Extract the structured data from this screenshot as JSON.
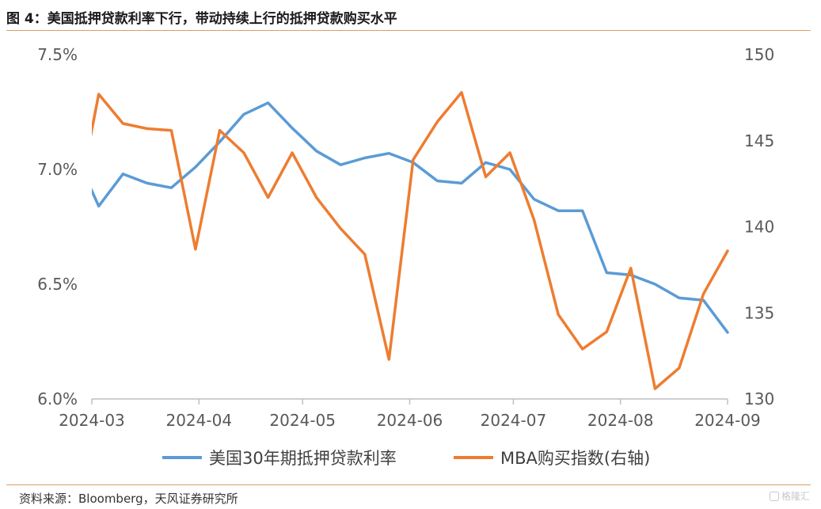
{
  "title": "图 4：美国抵押贷款利率下行，带动持续上行的抵押贷款购买水平",
  "source": "资料来源：Bloomberg，天风证券研究所",
  "watermark": "格隆汇",
  "colors": {
    "rate": "#5b9bd5",
    "mba": "#ed7d31",
    "rule": "#d9a066",
    "text": "#595959"
  },
  "chart_data": {
    "type": "line",
    "x_axis": {
      "type": "date",
      "range": [
        "2024-03-01",
        "2024-09-01"
      ],
      "ticks": [
        "2024-03-01",
        "2024-04-01",
        "2024-05-01",
        "2024-06-01",
        "2024-07-01",
        "2024-08-01",
        "2024-09-01"
      ],
      "tick_labels": [
        "2024-03",
        "2024-04",
        "2024-05",
        "2024-06",
        "2024-07",
        "2024-08",
        "2024-09"
      ]
    },
    "y_left": {
      "range": [
        6.0,
        7.5
      ],
      "ticks": [
        6.0,
        6.5,
        7.0,
        7.5
      ],
      "tick_labels": [
        "6.0%",
        "6.5%",
        "7.0%",
        "7.5%"
      ]
    },
    "y_right": {
      "range": [
        130,
        150
      ],
      "ticks": [
        130,
        135,
        140,
        145,
        150
      ],
      "tick_labels": [
        "130",
        "135",
        "140",
        "145",
        "150"
      ]
    },
    "grid": false,
    "legend_position": "bottom",
    "series": [
      {
        "name": "美国30年期抵押贷款利率",
        "axis": "left",
        "color": "#5b9bd5",
        "x": [
          "2024-02-29",
          "2024-03-03",
          "2024-03-10",
          "2024-03-17",
          "2024-03-24",
          "2024-03-31",
          "2024-04-07",
          "2024-04-14",
          "2024-04-21",
          "2024-04-28",
          "2024-05-05",
          "2024-05-12",
          "2024-05-19",
          "2024-05-26",
          "2024-06-02",
          "2024-06-09",
          "2024-06-16",
          "2024-06-23",
          "2024-06-30",
          "2024-07-07",
          "2024-07-14",
          "2024-07-21",
          "2024-07-28",
          "2024-08-04",
          "2024-08-11",
          "2024-08-18",
          "2024-08-25",
          "2024-09-01"
        ],
        "values": [
          6.94,
          6.84,
          6.98,
          6.94,
          6.92,
          7.01,
          7.12,
          7.24,
          7.29,
          7.18,
          7.08,
          7.02,
          7.05,
          7.07,
          7.03,
          6.95,
          6.94,
          7.03,
          7.0,
          6.87,
          6.82,
          6.82,
          6.55,
          6.54,
          6.5,
          6.44,
          6.43,
          6.29
        ]
      },
      {
        "name": "MBA购买指数(右轴)",
        "axis": "right",
        "color": "#ed7d31",
        "x": [
          "2024-02-29",
          "2024-03-03",
          "2024-03-10",
          "2024-03-17",
          "2024-03-24",
          "2024-03-31",
          "2024-04-07",
          "2024-04-14",
          "2024-04-21",
          "2024-04-28",
          "2024-05-05",
          "2024-05-12",
          "2024-05-19",
          "2024-05-26",
          "2024-06-02",
          "2024-06-09",
          "2024-06-16",
          "2024-06-23",
          "2024-06-30",
          "2024-07-07",
          "2024-07-14",
          "2024-07-21",
          "2024-07-28",
          "2024-08-04",
          "2024-08-11",
          "2024-08-18",
          "2024-08-25",
          "2024-09-01"
        ],
        "values": [
          144.6,
          147.7,
          146.0,
          145.7,
          145.6,
          138.7,
          145.6,
          144.3,
          141.7,
          144.3,
          141.7,
          139.9,
          138.4,
          132.3,
          143.9,
          146.1,
          147.8,
          142.9,
          144.3,
          140.4,
          134.9,
          132.9,
          133.9,
          137.6,
          130.6,
          131.8,
          136.1,
          138.6
        ]
      }
    ]
  }
}
